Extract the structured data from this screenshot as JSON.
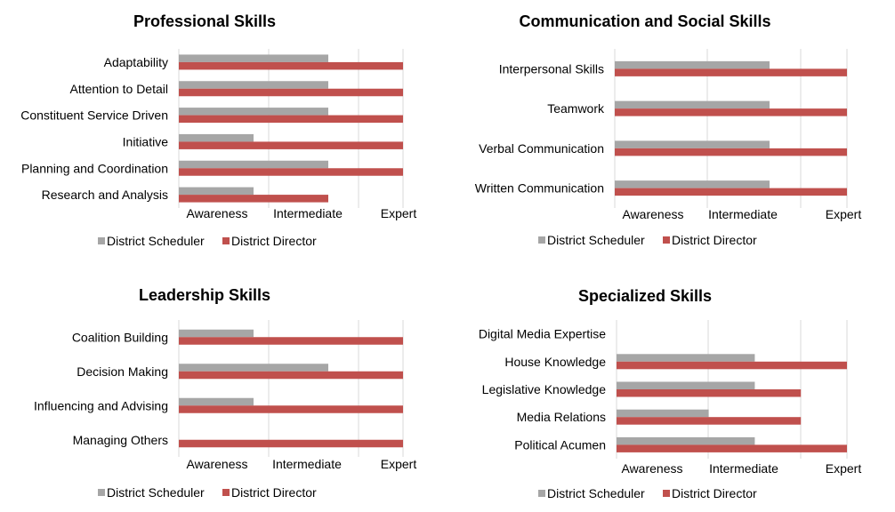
{
  "colors": {
    "scheduler": "#a6a6a6",
    "director": "#c0504d",
    "grid": "#d9d9d9"
  },
  "chart_data": [
    {
      "type": "bar",
      "orientation": "horizontal",
      "title": "Professional Skills",
      "categories": [
        "Adaptability",
        "Attention to Detail",
        "Constituent Service Driven",
        "Initiative",
        "Planning and Coordination",
        "Research and Analysis"
      ],
      "series": [
        {
          "name": "District Scheduler",
          "values": [
            2,
            2,
            2,
            1,
            2,
            1
          ]
        },
        {
          "name": "District Director",
          "values": [
            3,
            3,
            3,
            3,
            3,
            2
          ]
        }
      ],
      "x_ticks": [
        "Awareness",
        "Intermediate",
        "Expert"
      ],
      "xlim": [
        0,
        3
      ],
      "grid": true,
      "legend": "bottom"
    },
    {
      "type": "bar",
      "orientation": "horizontal",
      "title": "Communication and Social Skills",
      "categories": [
        "Interpersonal Skills",
        "Teamwork",
        "Verbal Communication",
        "Written Communication"
      ],
      "series": [
        {
          "name": "District Scheduler",
          "values": [
            2,
            2,
            2,
            2
          ]
        },
        {
          "name": "District Director",
          "values": [
            3,
            3,
            3,
            3
          ]
        }
      ],
      "x_ticks": [
        "Awareness",
        "Intermediate",
        "Expert"
      ],
      "xlim": [
        0,
        3
      ],
      "grid": true,
      "legend": "bottom"
    },
    {
      "type": "bar",
      "orientation": "horizontal",
      "title": "Leadership Skills",
      "categories": [
        "Coalition Building",
        "Decision Making",
        "Influencing and Advising",
        "Managing Others"
      ],
      "series": [
        {
          "name": "District Scheduler",
          "values": [
            1,
            2,
            1,
            0
          ]
        },
        {
          "name": "District Director",
          "values": [
            3,
            3,
            3,
            3
          ]
        }
      ],
      "x_ticks": [
        "Awareness",
        "Intermediate",
        "Expert"
      ],
      "xlim": [
        0,
        3
      ],
      "grid": true,
      "legend": "bottom"
    },
    {
      "type": "bar",
      "orientation": "horizontal",
      "title": "Specialized Skills",
      "categories": [
        "Digital Media Expertise",
        "House Knowledge",
        "Legislative Knowledge",
        "Media Relations",
        "Political Acumen"
      ],
      "series": [
        {
          "name": "District Scheduler",
          "values": [
            0,
            1.5,
            1.5,
            1,
            1.5
          ]
        },
        {
          "name": "District Director",
          "values": [
            0,
            2.5,
            2,
            2,
            2.5
          ]
        }
      ],
      "x_ticks": [
        "Awareness",
        "Intermediate",
        "Expert"
      ],
      "xlim": [
        0,
        2.5
      ],
      "grid": true,
      "legend": "bottom"
    }
  ]
}
